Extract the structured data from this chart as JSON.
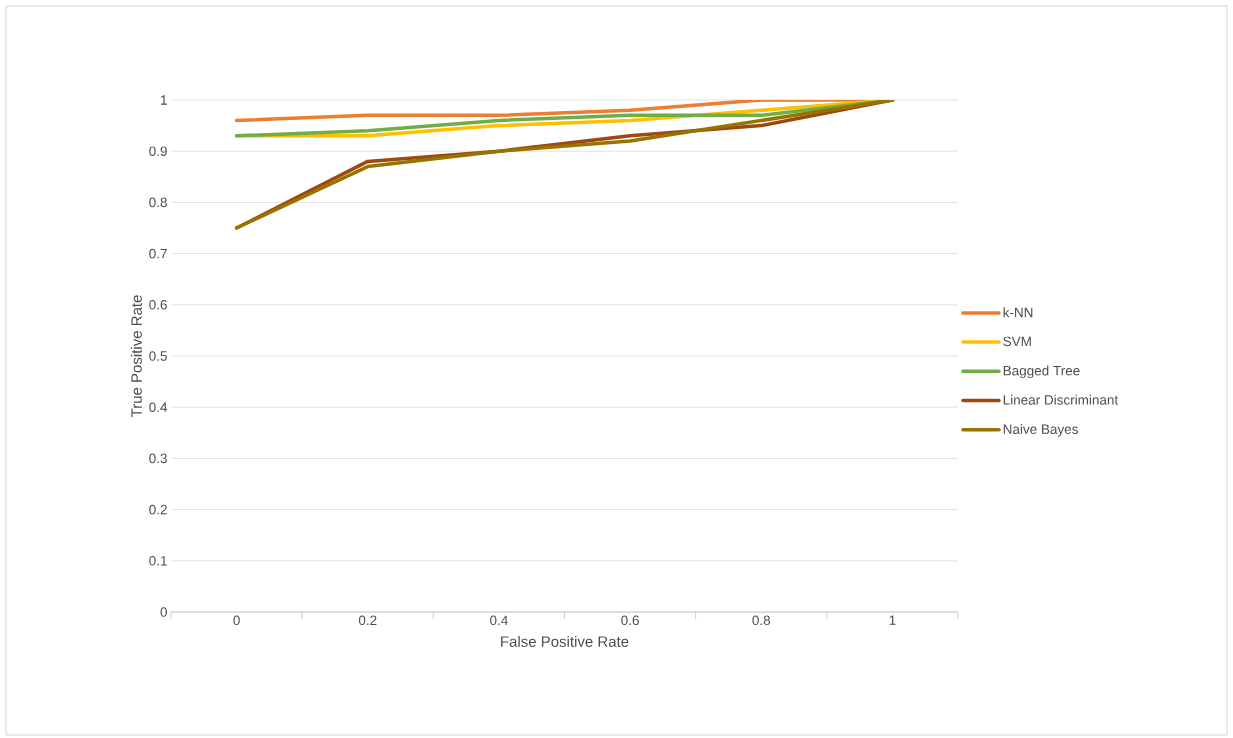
{
  "chart_data": {
    "type": "line",
    "xlabel": "False Positive Rate",
    "ylabel": "True Positive Rate",
    "categories": [
      "0",
      "0.2",
      "0.4",
      "0.6",
      "0.8",
      "1"
    ],
    "series": [
      {
        "name": "k-NN",
        "color": "#ed7d31",
        "values": [
          0.96,
          0.97,
          0.97,
          0.98,
          1.0,
          1.0
        ]
      },
      {
        "name": "SVM",
        "color": "#ffc000",
        "values": [
          0.93,
          0.93,
          0.95,
          0.96,
          0.98,
          1.0
        ]
      },
      {
        "name": "Bagged Tree",
        "color": "#70ad47",
        "values": [
          0.93,
          0.94,
          0.96,
          0.97,
          0.97,
          1.0
        ]
      },
      {
        "name": "Linear Discriminant",
        "color": "#9e480e",
        "values": [
          0.75,
          0.88,
          0.9,
          0.93,
          0.95,
          1.0
        ]
      },
      {
        "name": "Naive Bayes",
        "color": "#997300",
        "values": [
          0.75,
          0.87,
          0.9,
          0.92,
          0.96,
          1.0
        ]
      }
    ],
    "ylim": [
      0,
      1
    ],
    "yticks": [
      0,
      0.1,
      0.2,
      0.3,
      0.4,
      0.5,
      0.6,
      0.7,
      0.8,
      0.9,
      1
    ],
    "grid": "y",
    "legend": "right",
    "marker": "none",
    "line_style": "solid"
  }
}
